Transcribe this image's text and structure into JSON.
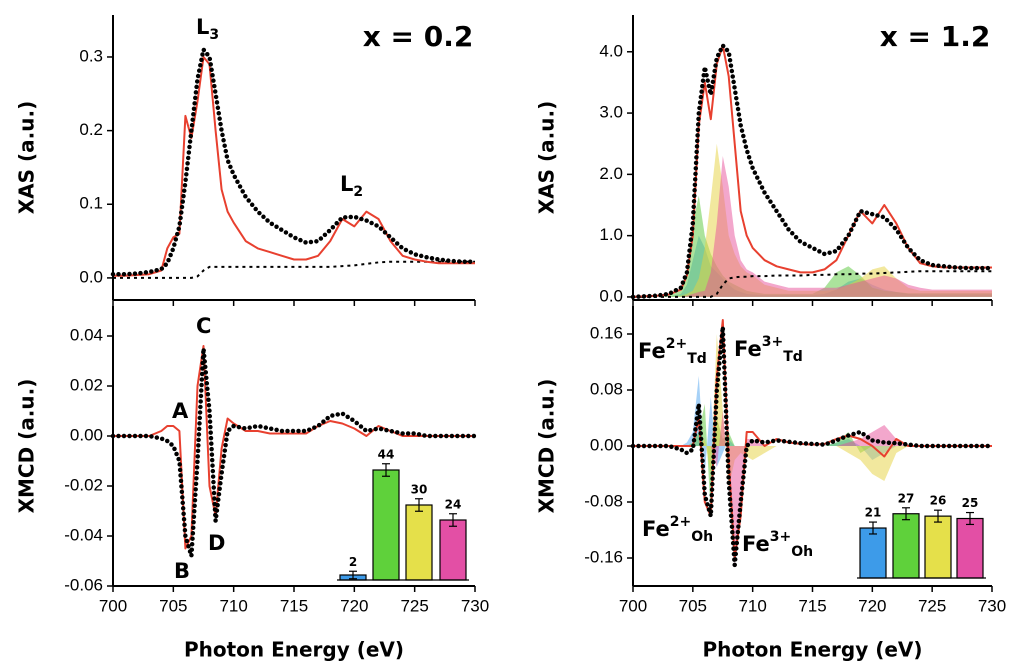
{
  "chart_data": [
    {
      "type": "line",
      "title": "x = 0.2",
      "ylabel": "XAS (a.u.)",
      "x": [
        700,
        701,
        702,
        703,
        704,
        704.5,
        705,
        705.5,
        706,
        706.5,
        707,
        707.5,
        708,
        708.5,
        709,
        709.5,
        710,
        711,
        712,
        713,
        714,
        715,
        716,
        717,
        718,
        719,
        720,
        721,
        722,
        723,
        724,
        725,
        726,
        727,
        728,
        729,
        730
      ],
      "xlim": [
        700,
        730
      ],
      "xticks": [
        700,
        705,
        710,
        715,
        720,
        725,
        730
      ],
      "xtick_labels": false,
      "ylim": [
        -0.03,
        0.357
      ],
      "yticks": [
        {
          "value": 0,
          "label": "0.0"
        },
        0.1,
        0.2,
        0.3
      ],
      "series": [
        {
          "style": "dashed",
          "color": "#000000",
          "values": [
            0,
            0,
            0,
            0,
            0,
            0,
            0,
            0,
            0,
            0,
            0.002,
            0.01,
            0.015,
            0.015,
            0.015,
            0.015,
            0.015,
            0.015,
            0.015,
            0.015,
            0.015,
            0.015,
            0.015,
            0.015,
            0.015,
            0.016,
            0.017,
            0.019,
            0.021,
            0.022,
            0.022,
            0.022,
            0.022,
            0.022,
            0.022,
            0.022,
            0.022
          ]
        },
        {
          "style": "solid",
          "color": "#e8402f",
          "values": [
            0.003,
            0.003,
            0.004,
            0.005,
            0.01,
            0.04,
            0.055,
            0.06,
            0.22,
            0.19,
            0.24,
            0.3,
            0.29,
            0.2,
            0.12,
            0.09,
            0.075,
            0.05,
            0.04,
            0.035,
            0.03,
            0.025,
            0.025,
            0.03,
            0.05,
            0.08,
            0.07,
            0.09,
            0.08,
            0.05,
            0.03,
            0.025,
            0.022,
            0.02,
            0.02,
            0.02,
            0.02
          ]
        },
        {
          "style": "dotted",
          "color": "#000000",
          "values": [
            0.005,
            0.005,
            0.006,
            0.008,
            0.012,
            0.02,
            0.04,
            0.07,
            0.13,
            0.2,
            0.27,
            0.31,
            0.3,
            0.25,
            0.2,
            0.16,
            0.14,
            0.11,
            0.09,
            0.075,
            0.065,
            0.055,
            0.048,
            0.05,
            0.065,
            0.082,
            0.083,
            0.078,
            0.07,
            0.055,
            0.04,
            0.032,
            0.028,
            0.025,
            0.023,
            0.022,
            0.022
          ]
        }
      ],
      "annotations": [
        {
          "text": "L",
          "sub": "3"
        },
        {
          "text": "L",
          "sub": "2"
        }
      ]
    },
    {
      "type": "line",
      "ylabel": "XMCD (a.u.)",
      "xlabel": "Photon Energy (eV)",
      "x": [
        700,
        701,
        702,
        703,
        704,
        704.5,
        705,
        705.5,
        706,
        706.5,
        707,
        707.5,
        708,
        708.5,
        709,
        709.5,
        710,
        711,
        712,
        713,
        714,
        715,
        716,
        717,
        718,
        719,
        720,
        721,
        722,
        723,
        724,
        725,
        726,
        727,
        728,
        729,
        730
      ],
      "xlim": [
        700,
        730
      ],
      "xticks": [
        700,
        705,
        710,
        715,
        720,
        725,
        730
      ],
      "xtick_labels": true,
      "ylim": [
        -0.06,
        0.052
      ],
      "yticks": [
        -0.06,
        -0.04,
        -0.02,
        {
          "value": 0,
          "label": "0.00"
        },
        0.02,
        0.04
      ],
      "series": [
        {
          "style": "solid",
          "color": "#e8402f",
          "values": [
            0,
            0,
            0,
            0,
            0.002,
            0.004,
            0.004,
            0.002,
            -0.045,
            -0.04,
            0.02,
            0.036,
            -0.02,
            -0.032,
            -0.005,
            0.007,
            0.005,
            0.002,
            0.002,
            0.001,
            0.001,
            0.001,
            0.001,
            0.004,
            0.006,
            0.005,
            0.003,
            0,
            0.004,
            0.002,
            0,
            0,
            0,
            0,
            0,
            0,
            0
          ]
        },
        {
          "style": "dotted",
          "color": "#000000",
          "values": [
            0,
            0,
            0,
            0,
            -0.001,
            -0.002,
            -0.004,
            -0.01,
            -0.04,
            -0.048,
            -0.01,
            0.035,
            0.01,
            -0.034,
            -0.015,
            0.002,
            0.004,
            0.003,
            0.004,
            0.003,
            0.002,
            0.002,
            0.002,
            0.004,
            0.008,
            0.009,
            0.006,
            0.002,
            0.003,
            0.002,
            0.001,
            0.001,
            0,
            0,
            0,
            0,
            0
          ]
        }
      ],
      "annotations": [
        {
          "text": "A"
        },
        {
          "text": "B"
        },
        {
          "text": "C"
        },
        {
          "text": "D"
        }
      ],
      "inset": {
        "type": "bar",
        "ylim": [
          0,
          50
        ],
        "values": [
          2,
          44,
          30,
          24
        ],
        "errors": [
          1.5,
          2.5,
          2.5,
          2.5
        ],
        "colors": [
          "#3d9be9",
          "#5fd13b",
          "#e5e04a",
          "#e34fa5"
        ]
      }
    },
    {
      "type": "line",
      "title": "x = 1.2",
      "ylabel": "XAS (a.u.)",
      "x": [
        700,
        701,
        702,
        703,
        704,
        704.5,
        705,
        705.5,
        706,
        706.5,
        707,
        707.5,
        708,
        708.5,
        709,
        709.5,
        710,
        711,
        712,
        713,
        714,
        715,
        716,
        717,
        718,
        719,
        720,
        721,
        722,
        723,
        724,
        725,
        726,
        727,
        728,
        729,
        730
      ],
      "xlim": [
        700,
        730
      ],
      "xticks": [
        700,
        705,
        710,
        715,
        720,
        725,
        730
      ],
      "xtick_labels": false,
      "ylim": [
        -0.05,
        4.6
      ],
      "yticks": [
        {
          "value": 0,
          "label": "0.0"
        },
        {
          "value": 1,
          "label": "1.0"
        },
        {
          "value": 2,
          "label": "2.0"
        },
        {
          "value": 3,
          "label": "3.0"
        },
        {
          "value": 4,
          "label": "4.0"
        }
      ],
      "series": [
        {
          "style": "area",
          "color": "#4da3f0",
          "values": [
            0,
            0,
            0,
            0,
            0.05,
            0.2,
            0.6,
            1,
            0.8,
            0.5,
            0.4,
            0.3,
            0.2,
            0.12,
            0.08,
            0.05,
            0.04,
            0.03,
            0.03,
            0.03,
            0.03,
            0.03,
            0.05,
            0.12,
            0.25,
            0.3,
            0.2,
            0.12,
            0.08,
            0.05,
            0.04,
            0.04,
            0.04,
            0.04,
            0.04,
            0.04,
            0.04
          ]
        },
        {
          "style": "area",
          "color": "#58c83a",
          "values": [
            0,
            0,
            0,
            0.02,
            0.1,
            0.4,
            1.2,
            1.65,
            1,
            0.7,
            0.5,
            0.35,
            0.25,
            0.2,
            0.15,
            0.1,
            0.08,
            0.05,
            0.05,
            0.05,
            0.05,
            0.05,
            0.15,
            0.4,
            0.5,
            0.35,
            0.15,
            0.1,
            0.08,
            0.06,
            0.06,
            0.06,
            0.06,
            0.06,
            0.06,
            0.06,
            0.06
          ]
        },
        {
          "style": "area",
          "color": "#e6d23e",
          "values": [
            0,
            0,
            0,
            0,
            0.02,
            0.05,
            0.1,
            0.3,
            0.8,
            1.6,
            2.5,
            1.8,
            1,
            0.7,
            0.5,
            0.4,
            0.35,
            0.2,
            0.15,
            0.1,
            0.1,
            0.1,
            0.1,
            0.12,
            0.2,
            0.3,
            0.45,
            0.5,
            0.3,
            0.15,
            0.1,
            0.1,
            0.1,
            0.1,
            0.1,
            0.1,
            0.1
          ]
        },
        {
          "style": "area",
          "color": "#e8509a",
          "values": [
            0,
            0,
            0,
            0,
            0,
            0.02,
            0.05,
            0.08,
            0.1,
            0.4,
            1.2,
            2.3,
            1.8,
            1,
            0.6,
            0.45,
            0.4,
            0.25,
            0.2,
            0.15,
            0.15,
            0.15,
            0.15,
            0.15,
            0.2,
            0.25,
            0.3,
            0.35,
            0.3,
            0.2,
            0.15,
            0.12,
            0.12,
            0.12,
            0.12,
            0.12,
            0.12
          ]
        },
        {
          "style": "dashed",
          "color": "#000000",
          "values": [
            0,
            0,
            0,
            0,
            0,
            0,
            0,
            0,
            0,
            0,
            0.05,
            0.2,
            0.3,
            0.32,
            0.33,
            0.33,
            0.34,
            0.34,
            0.35,
            0.35,
            0.35,
            0.36,
            0.36,
            0.37,
            0.37,
            0.38,
            0.38,
            0.39,
            0.4,
            0.41,
            0.42,
            0.42,
            0.42,
            0.42,
            0.42,
            0.42,
            0.42
          ]
        },
        {
          "style": "solid",
          "color": "#e8402f",
          "values": [
            0,
            0.01,
            0.02,
            0.04,
            0.12,
            0.35,
            1,
            2.8,
            3.5,
            2.9,
            3.8,
            4.1,
            3.6,
            2.5,
            1.4,
            1,
            0.8,
            0.6,
            0.5,
            0.45,
            0.4,
            0.4,
            0.45,
            0.6,
            1,
            1.4,
            1.2,
            1.5,
            1.2,
            0.8,
            0.55,
            0.5,
            0.48,
            0.48,
            0.48,
            0.48,
            0.48
          ]
        },
        {
          "style": "dotted",
          "color": "#000000",
          "values": [
            0,
            0.01,
            0.02,
            0.05,
            0.15,
            0.4,
            1.2,
            3,
            3.75,
            3.3,
            3.9,
            4.1,
            4,
            3.4,
            2.8,
            2.4,
            2.1,
            1.7,
            1.4,
            1.1,
            0.9,
            0.8,
            0.7,
            0.75,
            1,
            1.4,
            1.35,
            1.3,
            1.1,
            0.8,
            0.6,
            0.52,
            0.5,
            0.48,
            0.47,
            0.47,
            0.47
          ]
        }
      ]
    },
    {
      "type": "line",
      "ylabel": "XMCD (a.u.)",
      "xlabel": "Photon Energy (eV)",
      "x": [
        700,
        701,
        702,
        703,
        704,
        704.5,
        705,
        705.5,
        706,
        706.5,
        707,
        707.5,
        708,
        708.5,
        709,
        709.5,
        710,
        711,
        712,
        713,
        714,
        715,
        716,
        717,
        718,
        719,
        720,
        721,
        722,
        723,
        724,
        725,
        726,
        727,
        728,
        729,
        730
      ],
      "xlim": [
        700,
        730
      ],
      "xticks": [
        700,
        705,
        710,
        715,
        720,
        725,
        730
      ],
      "xtick_labels": true,
      "ylim": [
        -0.2,
        0.2
      ],
      "yticks": [
        -0.16,
        -0.08,
        {
          "value": 0,
          "label": "0.00"
        },
        0.08,
        0.16
      ],
      "series": [
        {
          "style": "area",
          "color": "#4da3f0",
          "values": [
            0,
            0,
            0,
            0,
            0,
            0.005,
            0.02,
            0.1,
            -0.04,
            0.07,
            -0.03,
            -0.01,
            0.01,
            0,
            0,
            0,
            0,
            0,
            0,
            0,
            0,
            0,
            0,
            0.005,
            0.01,
            0,
            -0.02,
            -0.01,
            0,
            0,
            0,
            0,
            0,
            0,
            0,
            0,
            0
          ]
        },
        {
          "style": "area",
          "color": "#58c83a",
          "values": [
            0,
            0,
            0,
            0,
            0,
            0,
            0.005,
            0.02,
            0.06,
            -0.1,
            0.04,
            0.01,
            0.02,
            0,
            0,
            0,
            0,
            0,
            0,
            0,
            0,
            0,
            0,
            0.005,
            0.02,
            -0.01,
            0,
            0,
            0,
            0,
            0,
            0,
            0,
            0,
            0,
            0,
            0
          ]
        },
        {
          "style": "area",
          "color": "#e6d23e",
          "values": [
            0,
            0,
            0,
            0,
            0,
            0,
            0,
            0,
            0.01,
            -0.04,
            0.16,
            0.05,
            -0.06,
            -0.02,
            -0.01,
            -0.015,
            -0.02,
            -0.01,
            0,
            0,
            0,
            0,
            0,
            0,
            -0.01,
            -0.02,
            -0.04,
            -0.05,
            -0.01,
            0,
            0,
            0,
            0,
            0,
            0,
            0,
            0
          ]
        },
        {
          "style": "area",
          "color": "#e8509a",
          "values": [
            0,
            0,
            0,
            0,
            0,
            0,
            0,
            0,
            0,
            0,
            -0.03,
            0.05,
            -0.04,
            -0.17,
            -0.08,
            0.01,
            0.01,
            0,
            0,
            0,
            0,
            0,
            0,
            0,
            0.005,
            0.01,
            0.02,
            0.03,
            0.01,
            0,
            0,
            0,
            0,
            0,
            0,
            0,
            0
          ]
        },
        {
          "style": "solid",
          "color": "#e8402f",
          "values": [
            0,
            0,
            0,
            0,
            0,
            0,
            0,
            0.04,
            -0.08,
            -0.1,
            0.1,
            0.18,
            -0.02,
            -0.16,
            -0.1,
            0.02,
            0.02,
            0,
            0.01,
            0.005,
            0.003,
            0.002,
            0.003,
            0.01,
            0.015,
            0.01,
            0,
            -0.015,
            0.01,
            0,
            0,
            0,
            0,
            0,
            0,
            0,
            0
          ]
        },
        {
          "style": "dotted",
          "color": "#000000",
          "values": [
            0,
            0,
            0,
            0,
            -0.005,
            -0.01,
            -0.005,
            0.06,
            -0.07,
            -0.1,
            0.08,
            0.17,
            -0.05,
            -0.17,
            -0.08,
            0,
            0.008,
            0.005,
            0.008,
            0.006,
            0.004,
            0.003,
            0.002,
            0.008,
            0.015,
            0.02,
            0.008,
            0.005,
            0.004,
            0.002,
            0,
            0,
            0,
            0,
            0,
            0,
            0
          ]
        }
      ],
      "annotations": [
        {
          "text": "Fe",
          "sup": "2+",
          "sub": "Td",
          "color": "#2a2ad0"
        },
        {
          "text": "Fe",
          "sup": "3+",
          "sub": "Td",
          "color": "#c9a030"
        },
        {
          "text": "Fe",
          "sup": "2+",
          "sub": "Oh",
          "color": "#3fa52e"
        },
        {
          "text": "Fe",
          "sup": "3+",
          "sub": "Oh",
          "color": "#e0407a"
        }
      ],
      "inset": {
        "type": "bar",
        "ylim": [
          0,
          50
        ],
        "values": [
          21,
          27,
          26,
          25
        ],
        "errors": [
          2.5,
          2.5,
          2.5,
          2.5
        ],
        "colors": [
          "#3d9be9",
          "#5fd13b",
          "#e5e04a",
          "#e34fa5"
        ]
      }
    }
  ]
}
